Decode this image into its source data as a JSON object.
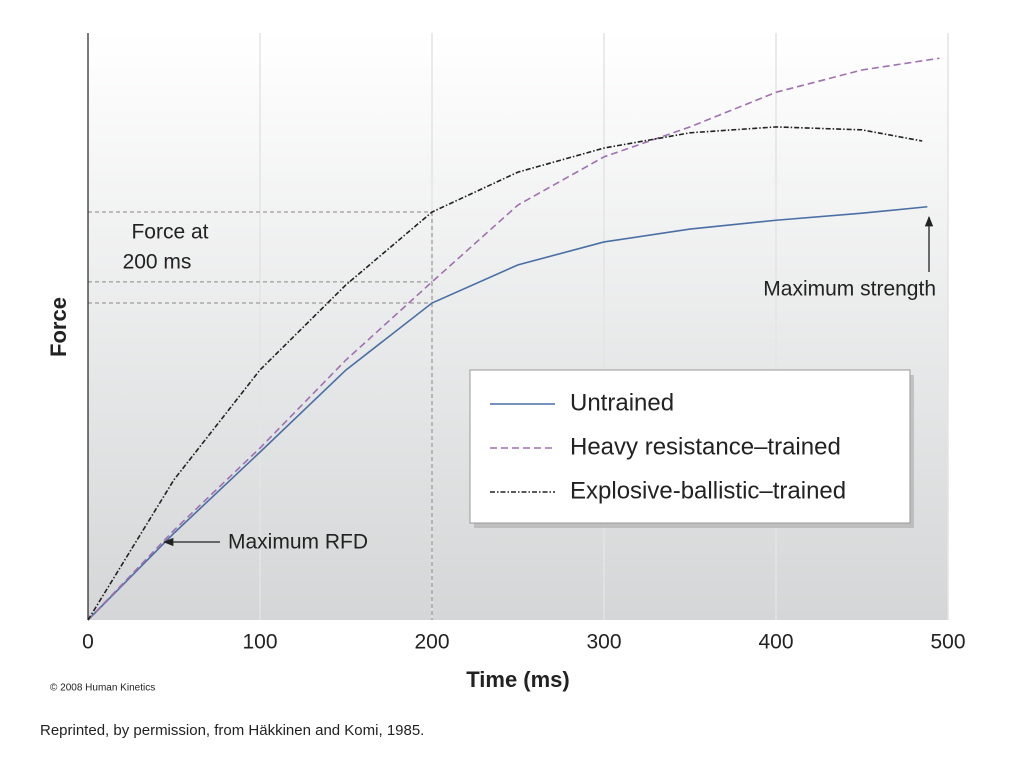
{
  "chart_data": {
    "type": "line",
    "xlabel": "Time (ms)",
    "ylabel": "Force",
    "xlim": [
      0,
      500
    ],
    "xticks": [
      0,
      100,
      200,
      300,
      400,
      500
    ],
    "ylim": [
      0,
      100
    ],
    "grid": true,
    "series": [
      {
        "name": "Untrained",
        "color": "#4a6fa5",
        "dash": "solid",
        "x": [
          0,
          50,
          100,
          150,
          200,
          250,
          300,
          350,
          400,
          450,
          488
        ],
        "values": [
          0,
          14.8,
          28.6,
          42.6,
          54.0,
          60.5,
          64.4,
          66.6,
          68.1,
          69.3,
          70.4
        ]
      },
      {
        "name": "Heavy resistance–trained",
        "color": "#a070b0",
        "dash": "dashed",
        "x": [
          0,
          50,
          100,
          150,
          200,
          250,
          300,
          350,
          400,
          450,
          495
        ],
        "values": [
          0,
          15.3,
          29.3,
          44.3,
          57.6,
          70.7,
          78.9,
          84.0,
          89.9,
          93.7,
          95.7
        ]
      },
      {
        "name": "Explosive-ballistic–trained",
        "color": "#222222",
        "dash": "dashdot",
        "x": [
          0,
          50,
          100,
          150,
          200,
          250,
          300,
          350,
          400,
          450,
          485
        ],
        "values": [
          0,
          23.9,
          42.6,
          57.1,
          69.5,
          76.3,
          80.4,
          83.0,
          84.0,
          83.5,
          81.6
        ]
      }
    ],
    "annotations": [
      "Force at",
      "200 ms",
      "Maximum strength",
      "Maximum RFD"
    ],
    "copyright": "© 2008 Human Kinetics",
    "caption": "Reprinted, by permission, from Häkkinen and Komi, 1985."
  }
}
